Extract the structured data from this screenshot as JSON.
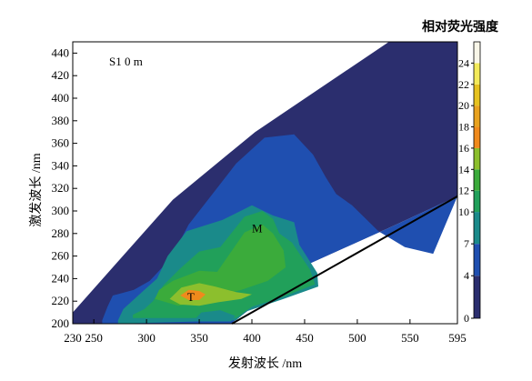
{
  "chart_data": {
    "type": "heatmap",
    "subtype": "excitation-emission fluorescence contour map",
    "xlabel": "发射波长 /nm",
    "ylabel": "激发波长 /nm",
    "xlim": [
      230,
      595
    ],
    "ylim": [
      200,
      450
    ],
    "x_ticks": [
      230,
      250,
      300,
      350,
      400,
      450,
      500,
      550,
      595
    ],
    "y_ticks": [
      200,
      220,
      240,
      260,
      280,
      300,
      320,
      340,
      360,
      380,
      400,
      420,
      440
    ],
    "sample_label": "S1 0 m",
    "colorbar": {
      "title": "相对荧光强度",
      "ticks": [
        0,
        4,
        7,
        10,
        12,
        14,
        16,
        18,
        20,
        22,
        24
      ],
      "levels": [
        {
          "from": 0,
          "to": 4,
          "color": "#2b2e6e"
        },
        {
          "from": 4,
          "to": 7,
          "color": "#1f4fb0"
        },
        {
          "from": 7,
          "to": 10,
          "color": "#1a8a8a"
        },
        {
          "from": 10,
          "to": 12,
          "color": "#21a05a"
        },
        {
          "from": 12,
          "to": 14,
          "color": "#3bab3b"
        },
        {
          "from": 14,
          "to": 16,
          "color": "#8cbf2d"
        },
        {
          "from": 16,
          "to": 18,
          "color": "#f08a1c"
        },
        {
          "from": 18,
          "to": 20,
          "color": "#e8a21e"
        },
        {
          "from": 20,
          "to": 22,
          "color": "#e6c21f"
        },
        {
          "from": 22,
          "to": 24,
          "color": "#f3ea5a"
        },
        {
          "from": 24,
          "to": 26,
          "color": "#f8f6e8"
        }
      ]
    },
    "peaks": [
      {
        "label": "M",
        "em": 405,
        "ex": 285,
        "intensity_range": "12-14"
      },
      {
        "label": "T",
        "em": 342,
        "ex": 224,
        "intensity_range": "16-18"
      }
    ],
    "regions": [
      {
        "intensity": 2,
        "points": [
          [
            230,
            210
          ],
          [
            325,
            310
          ],
          [
            403,
            370
          ],
          [
            530,
            450
          ],
          [
            595,
            450
          ],
          [
            595,
            313
          ],
          [
            530,
            285
          ],
          [
            430,
            243
          ],
          [
            405,
            218
          ],
          [
            380,
            200
          ],
          [
            230,
            200
          ]
        ]
      },
      {
        "intensity": 5.5,
        "points": [
          [
            258,
            203
          ],
          [
            263,
            215
          ],
          [
            268,
            225
          ],
          [
            288,
            230
          ],
          [
            303,
            238
          ],
          [
            323,
            258
          ],
          [
            340,
            288
          ],
          [
            360,
            312
          ],
          [
            385,
            342
          ],
          [
            412,
            365
          ],
          [
            440,
            368
          ],
          [
            458,
            350
          ],
          [
            470,
            330
          ],
          [
            480,
            315
          ],
          [
            495,
            305
          ],
          [
            520,
            282
          ],
          [
            545,
            268
          ],
          [
            572,
            262
          ],
          [
            595,
            313
          ],
          [
            530,
            285
          ],
          [
            430,
            243
          ],
          [
            405,
            218
          ],
          [
            380,
            200
          ],
          [
            258,
            200
          ]
        ]
      },
      {
        "intensity": 8.5,
        "points": [
          [
            273,
            203
          ],
          [
            278,
            213
          ],
          [
            298,
            230
          ],
          [
            310,
            240
          ],
          [
            320,
            260
          ],
          [
            338,
            282
          ],
          [
            372,
            292
          ],
          [
            400,
            305
          ],
          [
            420,
            296
          ],
          [
            440,
            290
          ],
          [
            445,
            270
          ],
          [
            462,
            245
          ],
          [
            463,
            233
          ],
          [
            430,
            222
          ],
          [
            395,
            211
          ],
          [
            385,
            203
          ],
          [
            273,
            200
          ]
        ]
      },
      {
        "intensity": 11,
        "points": [
          [
            287,
            208
          ],
          [
            298,
            213
          ],
          [
            306,
            220
          ],
          [
            316,
            234
          ],
          [
            332,
            249
          ],
          [
            350,
            264
          ],
          [
            370,
            268
          ],
          [
            393,
            295
          ],
          [
            410,
            300
          ],
          [
            420,
            293
          ],
          [
            426,
            280
          ],
          [
            438,
            272
          ],
          [
            455,
            248
          ],
          [
            460,
            235
          ],
          [
            430,
            224
          ],
          [
            400,
            215
          ],
          [
            385,
            205
          ],
          [
            287,
            205
          ]
        ]
      },
      {
        "intensity": 13,
        "points": [
          [
            308,
            222
          ],
          [
            312,
            230
          ],
          [
            325,
            238
          ],
          [
            350,
            247
          ],
          [
            367,
            246
          ],
          [
            393,
            281
          ],
          [
            410,
            288
          ],
          [
            420,
            280
          ],
          [
            430,
            265
          ],
          [
            432,
            250
          ],
          [
            415,
            238
          ],
          [
            390,
            230
          ],
          [
            370,
            225
          ],
          [
            350,
            219
          ],
          [
            330,
            216
          ]
        ]
      },
      {
        "intensity": 15,
        "points": [
          [
            322,
            222
          ],
          [
            333,
            232
          ],
          [
            350,
            236
          ],
          [
            365,
            233
          ],
          [
            385,
            228
          ],
          [
            400,
            226
          ],
          [
            390,
            222
          ],
          [
            368,
            219
          ],
          [
            350,
            216
          ],
          [
            332,
            217
          ]
        ]
      },
      {
        "intensity": 17,
        "points": [
          [
            332,
            225
          ],
          [
            340,
            230
          ],
          [
            350,
            229
          ],
          [
            356,
            226
          ],
          [
            350,
            221
          ],
          [
            340,
            221
          ]
        ]
      },
      {
        "intensity": 15,
        "points": [
          [
            356,
            206
          ],
          [
            364,
            209
          ],
          [
            376,
            207
          ],
          [
            368,
            204
          ]
        ]
      },
      {
        "intensity": 8.5,
        "points": [
          [
            345,
            203
          ],
          [
            352,
            210
          ],
          [
            370,
            212
          ],
          [
            384,
            207
          ],
          [
            380,
            202
          ],
          [
            345,
            202
          ]
        ]
      }
    ]
  }
}
